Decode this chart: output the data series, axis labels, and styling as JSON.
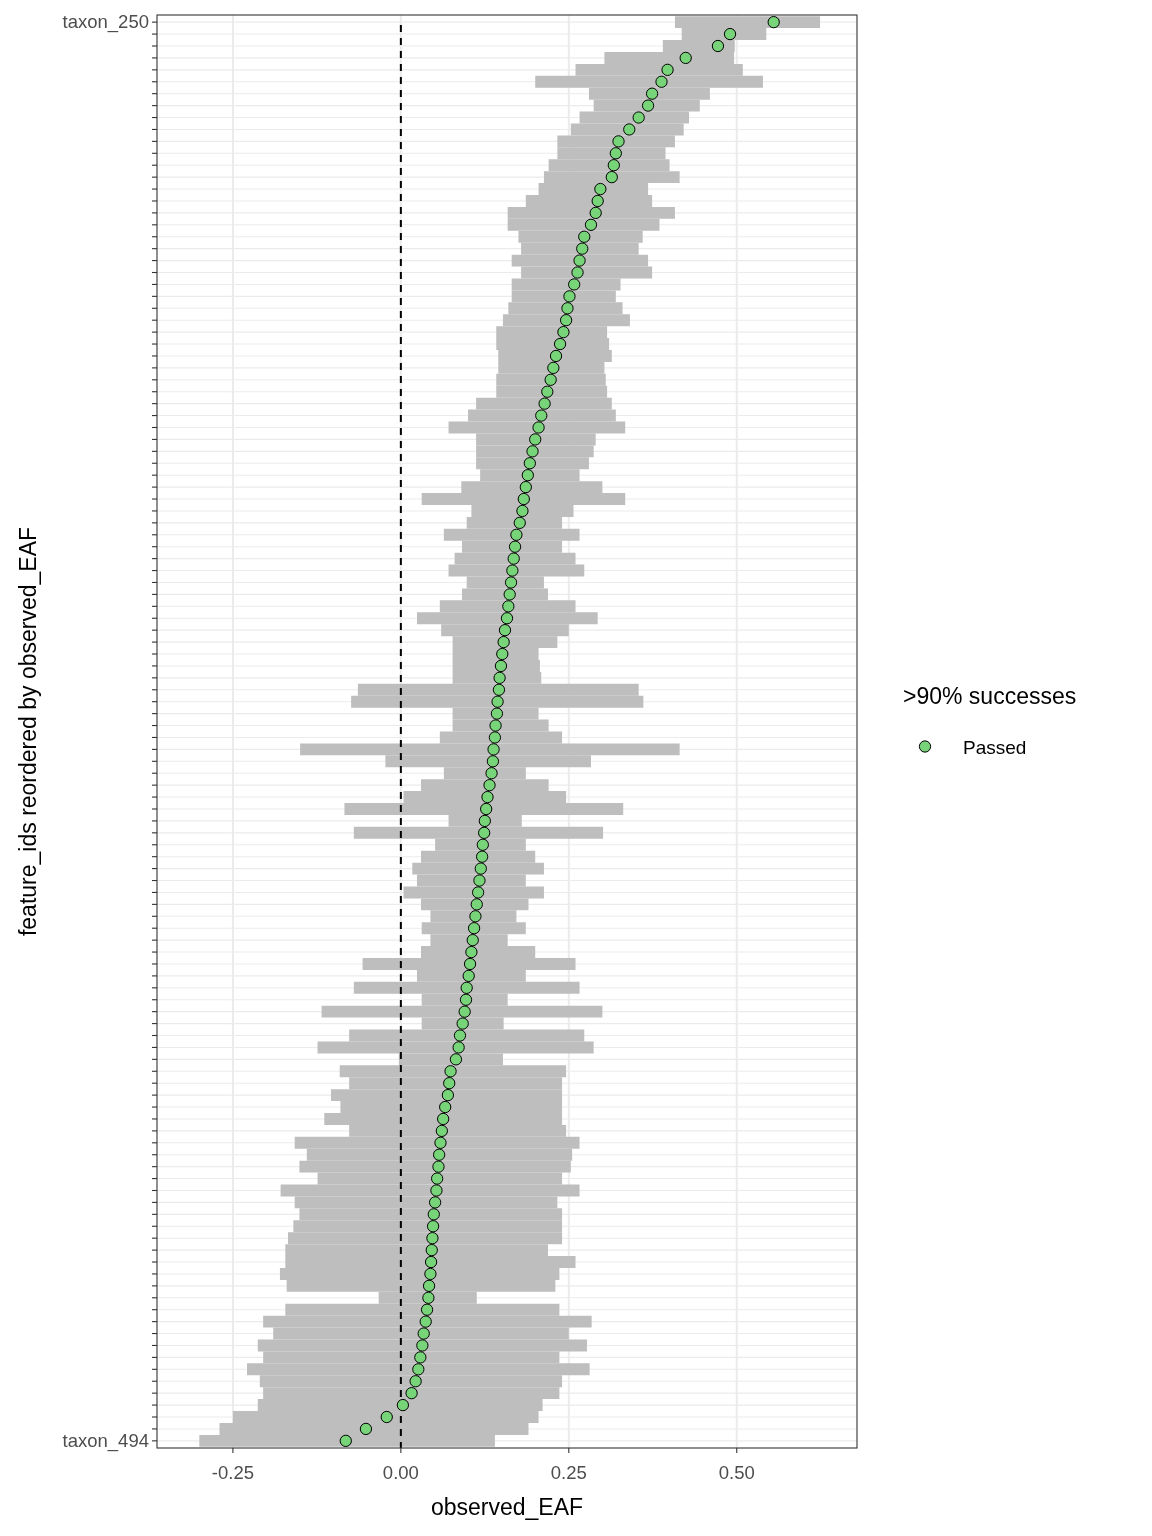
{
  "chart_data": {
    "type": "scatter",
    "orientation": "horizontal",
    "xlabel": "observed_EAF",
    "ylabel": "feature_ids reordered by observed_EAF",
    "legend_title": ">90% successes",
    "legend": "right",
    "grid": true,
    "marker": "circle",
    "categories": [
      "taxon_250",
      null,
      null,
      null,
      null,
      null,
      null,
      null,
      null,
      null,
      null,
      null,
      null,
      null,
      null,
      null,
      null,
      null,
      null,
      null,
      null,
      null,
      null,
      null,
      null,
      null,
      null,
      null,
      null,
      null,
      null,
      null,
      null,
      null,
      null,
      null,
      null,
      null,
      null,
      null,
      null,
      null,
      null,
      null,
      null,
      null,
      null,
      null,
      null,
      null,
      null,
      null,
      null,
      null,
      null,
      null,
      null,
      null,
      null,
      null,
      null,
      null,
      null,
      null,
      null,
      null,
      null,
      null,
      null,
      null,
      null,
      null,
      null,
      null,
      null,
      null,
      null,
      null,
      null,
      null,
      null,
      null,
      null,
      null,
      null,
      null,
      null,
      null,
      null,
      null,
      null,
      null,
      null,
      null,
      null,
      null,
      null,
      null,
      null,
      null,
      null,
      null,
      null,
      null,
      null,
      null,
      null,
      null,
      null,
      null,
      null,
      null,
      null,
      null,
      null,
      null,
      null,
      null,
      null,
      "taxon_494"
    ],
    "xlim": [
      -0.363,
      0.679
    ],
    "xticks": [
      -0.25,
      {
        "value": 0,
        "label": "0.00"
      },
      0.25,
      {
        "value": 0.5,
        "label": "0.50"
      }
    ],
    "series": [
      {
        "name": "Passed",
        "color": "#78d478",
        "values": [
          0.555,
          0.49,
          0.472,
          0.424,
          0.397,
          0.388,
          0.374,
          0.368,
          0.354,
          0.34,
          0.324,
          0.32,
          0.317,
          0.314,
          0.297,
          0.293,
          0.29,
          0.283,
          0.273,
          0.27,
          0.266,
          0.263,
          0.258,
          0.251,
          0.248,
          0.246,
          0.242,
          0.237,
          0.231,
          0.227,
          0.223,
          0.218,
          0.214,
          0.209,
          0.205,
          0.2,
          0.196,
          0.192,
          0.189,
          0.186,
          0.183,
          0.181,
          0.177,
          0.172,
          0.17,
          0.168,
          0.166,
          0.164,
          0.162,
          0.16,
          0.158,
          0.155,
          0.153,
          0.151,
          0.149,
          0.147,
          0.146,
          0.144,
          0.143,
          0.141,
          0.14,
          0.138,
          0.137,
          0.135,
          0.132,
          0.129,
          0.127,
          0.125,
          0.124,
          0.122,
          0.121,
          0.119,
          0.117,
          0.115,
          0.113,
          0.111,
          0.109,
          0.107,
          0.105,
          0.103,
          0.101,
          0.098,
          0.097,
          0.095,
          0.092,
          0.088,
          0.086,
          0.082,
          0.074,
          0.072,
          0.07,
          0.066,
          0.063,
          0.061,
          0.059,
          0.057,
          0.056,
          0.054,
          0.053,
          0.051,
          0.049,
          0.048,
          0.047,
          0.046,
          0.045,
          0.044,
          0.042,
          0.041,
          0.039,
          0.037,
          0.034,
          0.032,
          0.029,
          0.026,
          0.022,
          0.016,
          0.003,
          -0.021,
          -0.052,
          -0.082
        ],
        "errors": [
          [
            0.408,
            0.624
          ],
          [
            0.418,
            0.544
          ],
          [
            0.39,
            0.497
          ],
          [
            0.303,
            0.496
          ],
          [
            0.26,
            0.509
          ],
          [
            0.2,
            0.539
          ],
          [
            0.28,
            0.46
          ],
          [
            0.287,
            0.445
          ],
          [
            0.266,
            0.429
          ],
          [
            0.253,
            0.421
          ],
          [
            0.233,
            0.408
          ],
          [
            0.233,
            0.394
          ],
          [
            0.22,
            0.4
          ],
          [
            0.213,
            0.415
          ],
          [
            0.205,
            0.368
          ],
          [
            0.186,
            0.374
          ],
          [
            0.159,
            0.408
          ],
          [
            0.159,
            0.385
          ],
          [
            0.175,
            0.36
          ],
          [
            0.179,
            0.354
          ],
          [
            0.165,
            0.368
          ],
          [
            0.179,
            0.374
          ],
          [
            0.165,
            0.327
          ],
          [
            0.165,
            0.32
          ],
          [
            0.16,
            0.33
          ],
          [
            0.152,
            0.341
          ],
          [
            0.142,
            0.307
          ],
          [
            0.142,
            0.31
          ],
          [
            0.145,
            0.314
          ],
          [
            0.145,
            0.303
          ],
          [
            0.142,
            0.305
          ],
          [
            0.142,
            0.307
          ],
          [
            0.112,
            0.314
          ],
          [
            0.1,
            0.32
          ],
          [
            0.071,
            0.334
          ],
          [
            0.112,
            0.29
          ],
          [
            0.112,
            0.287
          ],
          [
            0.112,
            0.28
          ],
          [
            0.118,
            0.266
          ],
          [
            0.09,
            0.3
          ],
          [
            0.031,
            0.334
          ],
          [
            0.105,
            0.257
          ],
          [
            0.098,
            0.24
          ],
          [
            0.064,
            0.266
          ],
          [
            0.091,
            0.24
          ],
          [
            0.08,
            0.26
          ],
          [
            0.071,
            0.273
          ],
          [
            0.098,
            0.213
          ],
          [
            0.091,
            0.219
          ],
          [
            0.058,
            0.26
          ],
          [
            0.024,
            0.293
          ],
          [
            0.06,
            0.25
          ],
          [
            0.077,
            0.233
          ],
          [
            0.077,
            0.205
          ],
          [
            0.077,
            0.207
          ],
          [
            0.077,
            0.209
          ],
          [
            -0.064,
            0.354
          ],
          [
            -0.074,
            0.361
          ],
          [
            0.077,
            0.205
          ],
          [
            0.077,
            0.22
          ],
          [
            0.058,
            0.24
          ],
          [
            -0.15,
            0.415
          ],
          [
            -0.023,
            0.283
          ],
          [
            0.064,
            0.186
          ],
          [
            0.03,
            0.22
          ],
          [
            0.004,
            0.246
          ],
          [
            -0.084,
            0.331
          ],
          [
            0.071,
            0.18
          ],
          [
            -0.07,
            0.301
          ],
          [
            0.051,
            0.186
          ],
          [
            0.03,
            0.2
          ],
          [
            0.017,
            0.213
          ],
          [
            0.024,
            0.186
          ],
          [
            0.004,
            0.213
          ],
          [
            0.03,
            0.19
          ],
          [
            0.044,
            0.172
          ],
          [
            0.031,
            0.186
          ],
          [
            0.044,
            0.159
          ],
          [
            0.03,
            0.2
          ],
          [
            -0.057,
            0.26
          ],
          [
            0.024,
            0.186
          ],
          [
            -0.07,
            0.266
          ],
          [
            0.031,
            0.159
          ],
          [
            -0.118,
            0.3
          ],
          [
            0.031,
            0.153
          ],
          [
            -0.077,
            0.273
          ],
          [
            -0.124,
            0.287
          ],
          [
            -0.003,
            0.152
          ],
          [
            -0.091,
            0.246
          ],
          [
            -0.077,
            0.24
          ],
          [
            -0.104,
            0.24
          ],
          [
            -0.09,
            0.24
          ],
          [
            -0.114,
            0.24
          ],
          [
            -0.077,
            0.246
          ],
          [
            -0.158,
            0.266
          ],
          [
            -0.14,
            0.255
          ],
          [
            -0.151,
            0.253
          ],
          [
            -0.124,
            0.24
          ],
          [
            -0.179,
            0.266
          ],
          [
            -0.158,
            0.233
          ],
          [
            -0.151,
            0.24
          ],
          [
            -0.16,
            0.24
          ],
          [
            -0.168,
            0.24
          ],
          [
            -0.172,
            0.219
          ],
          [
            -0.172,
            0.26
          ],
          [
            -0.18,
            0.236
          ],
          [
            -0.17,
            0.23
          ],
          [
            -0.033,
            0.113
          ],
          [
            -0.172,
            0.236
          ],
          [
            -0.205,
            0.284
          ],
          [
            -0.19,
            0.25
          ],
          [
            -0.213,
            0.277
          ],
          [
            -0.205,
            0.236
          ],
          [
            -0.229,
            0.281
          ],
          [
            -0.21,
            0.24
          ],
          [
            -0.205,
            0.236
          ],
          [
            -0.213,
            0.211
          ],
          [
            -0.25,
            0.205
          ],
          [
            -0.27,
            0.19
          ],
          [
            -0.3,
            0.14
          ]
        ]
      }
    ],
    "ref_lines": [
      {
        "axis": "x",
        "value": 0,
        "line_style": "dashed",
        "color": "#000000"
      }
    ]
  }
}
